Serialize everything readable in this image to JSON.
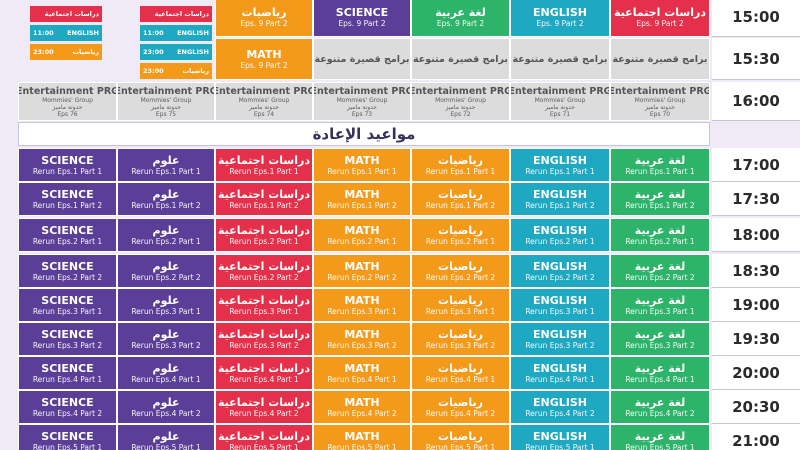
{
  "top": {
    "mini_columns": [
      [
        {
          "title": "دراسات اجتماعية"
        },
        {
          "title": "ENGLISH",
          "time": "11:00"
        },
        {
          "title": "رياضيات",
          "time": "23:00"
        }
      ],
      [
        {
          "title": "دراسات اجتماعية"
        },
        {
          "title": "ENGLISH",
          "time": "11:00"
        },
        {
          "title": "ENGLISH",
          "time": "23:00"
        },
        {
          "title": "رياضيات",
          "time": "23:00"
        }
      ]
    ],
    "rows": [
      {
        "time": "15:00",
        "cells": [
          {
            "title": "رياضيات",
            "subtitle": "Eps. 9 Part 2"
          },
          {
            "title": "SCIENCE",
            "subtitle": "Eps. 9 Part 2"
          },
          {
            "title": "لغة عربية",
            "subtitle": "Eps. 9 Part 2"
          },
          {
            "title": "ENGLISH",
            "subtitle": "Eps. 9 Part 2"
          },
          {
            "title": "دراسات اجتماعية",
            "subtitle": "Eps. 9 Part 2"
          }
        ]
      },
      {
        "time": "15:30",
        "cells": [
          {
            "title": "MATH",
            "subtitle": "Eps. 9 Part 2"
          },
          {
            "title": "برامج قصيرة متنوعة"
          },
          {
            "title": "برامج قصيرة متنوعة"
          },
          {
            "title": "برامج قصيرة متنوعة"
          },
          {
            "title": "برامج قصيرة متنوعة"
          }
        ]
      },
      {
        "time": "16:00",
        "cells": [
          {
            "title": "Entertainment PRG",
            "line2": "Mommies' Group",
            "line3": "حدوتة ماميز",
            "subtitle": "Eps 76"
          },
          {
            "title": "Entertainment PRG",
            "line2": "Mommies' Group",
            "line3": "حدوتة ماميز",
            "subtitle": "Eps 75"
          },
          {
            "title": "Entertainment PRG",
            "line2": "Mommies' Group",
            "line3": "حدوتة ماميز",
            "subtitle": "Eps 74"
          },
          {
            "title": "Entertainment PRG",
            "line2": "Mommies' Group",
            "line3": "حدوتة ماميز",
            "subtitle": "Eps 73"
          },
          {
            "title": "Entertainment PRG",
            "line2": "Mommies' Group",
            "line3": "حدوتة ماميز",
            "subtitle": "Eps 72"
          },
          {
            "title": "Entertainment PRG",
            "line2": "Mommies' Group",
            "line3": "حدوتة ماميز",
            "subtitle": "Eps 71"
          },
          {
            "title": "Entertainment PRG",
            "line2": "Mommies' Group",
            "line3": "حدوتة ماميز",
            "subtitle": "Eps 70"
          }
        ]
      }
    ]
  },
  "rerun": {
    "heading": "مواعيد الإعادة",
    "rows": [
      {
        "time": "17:00",
        "cells": [
          {
            "title": "SCIENCE",
            "subtitle": "Rerun Eps.1 Part 1"
          },
          {
            "title": "علوم",
            "subtitle": "Rerun Eps.1 Part 1"
          },
          {
            "title": "دراسات اجتماعية",
            "subtitle": "Rerun Eps.1 Part 1"
          },
          {
            "title": "MATH",
            "subtitle": "Rerun Eps.1 Part 1"
          },
          {
            "title": "رياضيات",
            "subtitle": "Rerun Eps.1 Part 1"
          },
          {
            "title": "ENGLISH",
            "subtitle": "Rerun Eps.1 Part 1"
          },
          {
            "title": "لغة عربية",
            "subtitle": "Rerun Eps.1 Part 1"
          }
        ]
      },
      {
        "time": "17:30",
        "cells": [
          {
            "title": "SCIENCE",
            "subtitle": "Rerun Eps.1 Part 2"
          },
          {
            "title": "علوم",
            "subtitle": "Rerun Eps.1 Part 2"
          },
          {
            "title": "دراسات اجتماعية",
            "subtitle": "Rerun Eps.1 Part 2"
          },
          {
            "title": "MATH",
            "subtitle": "Rerun Eps.1 Part 2"
          },
          {
            "title": "رياضيات",
            "subtitle": "Rerun Eps.1 Part 2"
          },
          {
            "title": "ENGLISH",
            "subtitle": "Rerun Eps.1 Part 2"
          },
          {
            "title": "لغة عربية",
            "subtitle": "Rerun Eps.1 Part 2"
          }
        ]
      },
      {
        "time": "18:00",
        "cells": [
          {
            "title": "SCIENCE",
            "subtitle": "Rerun Eps.2 Part 1"
          },
          {
            "title": "علوم",
            "subtitle": "Rerun Eps.2 Part 1"
          },
          {
            "title": "دراسات اجتماعية",
            "subtitle": "Rerun Eps.2 Part 1"
          },
          {
            "title": "MATH",
            "subtitle": "Rerun Eps.2 Part 1"
          },
          {
            "title": "رياضيات",
            "subtitle": "Rerun Eps.2 Part 1"
          },
          {
            "title": "ENGLISH",
            "subtitle": "Rerun Eps.2 Part 1"
          },
          {
            "title": "لغة عربية",
            "subtitle": "Rerun Eps.2 Part 1"
          }
        ]
      },
      {
        "time": "18:30",
        "cells": [
          {
            "title": "SCIENCE",
            "subtitle": "Rerun Eps.2 Part 2"
          },
          {
            "title": "علوم",
            "subtitle": "Rerun Eps.2 Part 2"
          },
          {
            "title": "دراسات اجتماعية",
            "subtitle": "Rerun Eps.2 Part 2"
          },
          {
            "title": "MATH",
            "subtitle": "Rerun Eps.2 Part 2"
          },
          {
            "title": "رياضيات",
            "subtitle": "Rerun Eps.2 Part 2"
          },
          {
            "title": "ENGLISH",
            "subtitle": "Rerun Eps.2 Part 2"
          },
          {
            "title": "لغة عربية",
            "subtitle": "Rerun Eps.2 Part 2"
          }
        ]
      },
      {
        "time": "19:00",
        "cells": [
          {
            "title": "SCIENCE",
            "subtitle": "Rerun Eps.3 Part 1"
          },
          {
            "title": "علوم",
            "subtitle": "Rerun Eps.3 Part 1"
          },
          {
            "title": "دراسات اجتماعية",
            "subtitle": "Rerun Eps.3 Part 1"
          },
          {
            "title": "MATH",
            "subtitle": "Rerun Eps.3 Part 1"
          },
          {
            "title": "رياضيات",
            "subtitle": "Rerun Eps.3 Part 1"
          },
          {
            "title": "ENGLISH",
            "subtitle": "Rerun Eps.3 Part 1"
          },
          {
            "title": "لغة عربية",
            "subtitle": "Rerun Eps.3 Part 1"
          }
        ]
      },
      {
        "time": "19:30",
        "cells": [
          {
            "title": "SCIENCE",
            "subtitle": "Rerun Eps.3 Part 2"
          },
          {
            "title": "علوم",
            "subtitle": "Rerun Eps.3 Part 2"
          },
          {
            "title": "دراسات اجتماعية",
            "subtitle": "Rerun Eps.3 Part 2"
          },
          {
            "title": "MATH",
            "subtitle": "Rerun Eps.3 Part 2"
          },
          {
            "title": "رياضيات",
            "subtitle": "Rerun Eps.3 Part 2"
          },
          {
            "title": "ENGLISH",
            "subtitle": "Rerun Eps.3 Part 2"
          },
          {
            "title": "لغة عربية",
            "subtitle": "Rerun Eps.3 Part 2"
          }
        ]
      },
      {
        "time": "20:00",
        "cells": [
          {
            "title": "SCIENCE",
            "subtitle": "Rerun Eps.4 Part 1"
          },
          {
            "title": "علوم",
            "subtitle": "Rerun Eps.4 Part 1"
          },
          {
            "title": "دراسات اجتماعية",
            "subtitle": "Rerun Eps.4 Part 1"
          },
          {
            "title": "MATH",
            "subtitle": "Rerun Eps.4 Part 1"
          },
          {
            "title": "رياضيات",
            "subtitle": "Rerun Eps.4 Part 1"
          },
          {
            "title": "ENGLISH",
            "subtitle": "Rerun Eps.4 Part 1"
          },
          {
            "title": "لغة عربية",
            "subtitle": "Rerun Eps.4 Part 1"
          }
        ]
      },
      {
        "time": "20:30",
        "cells": [
          {
            "title": "SCIENCE",
            "subtitle": "Rerun Eps.4 Part 2"
          },
          {
            "title": "علوم",
            "subtitle": "Rerun Eps.4 Part 2"
          },
          {
            "title": "دراسات اجتماعية",
            "subtitle": "Rerun Eps.4 Part 2"
          },
          {
            "title": "MATH",
            "subtitle": "Rerun Eps.4 Part 2"
          },
          {
            "title": "رياضيات",
            "subtitle": "Rerun Eps.4 Part 2"
          },
          {
            "title": "ENGLISH",
            "subtitle": "Rerun Eps.4 Part 2"
          },
          {
            "title": "لغة عربية",
            "subtitle": "Rerun Eps.4 Part 2"
          }
        ]
      },
      {
        "time": "21:00",
        "cells": [
          {
            "title": "SCIENCE",
            "subtitle": "Rerun Eps.5 Part 1"
          },
          {
            "title": "علوم",
            "subtitle": "Rerun Eps.5 Part 1"
          },
          {
            "title": "دراسات اجتماعية",
            "subtitle": "Rerun Eps.5 Part 1"
          },
          {
            "title": "MATH",
            "subtitle": "Rerun Eps.5 Part 1"
          },
          {
            "title": "رياضيات",
            "subtitle": "Rerun Eps.5 Part 1"
          },
          {
            "title": "ENGLISH",
            "subtitle": "Rerun Eps.5 Part 1"
          },
          {
            "title": "لغة عربية",
            "subtitle": "Rerun Eps.5 Part 1"
          }
        ]
      }
    ]
  }
}
